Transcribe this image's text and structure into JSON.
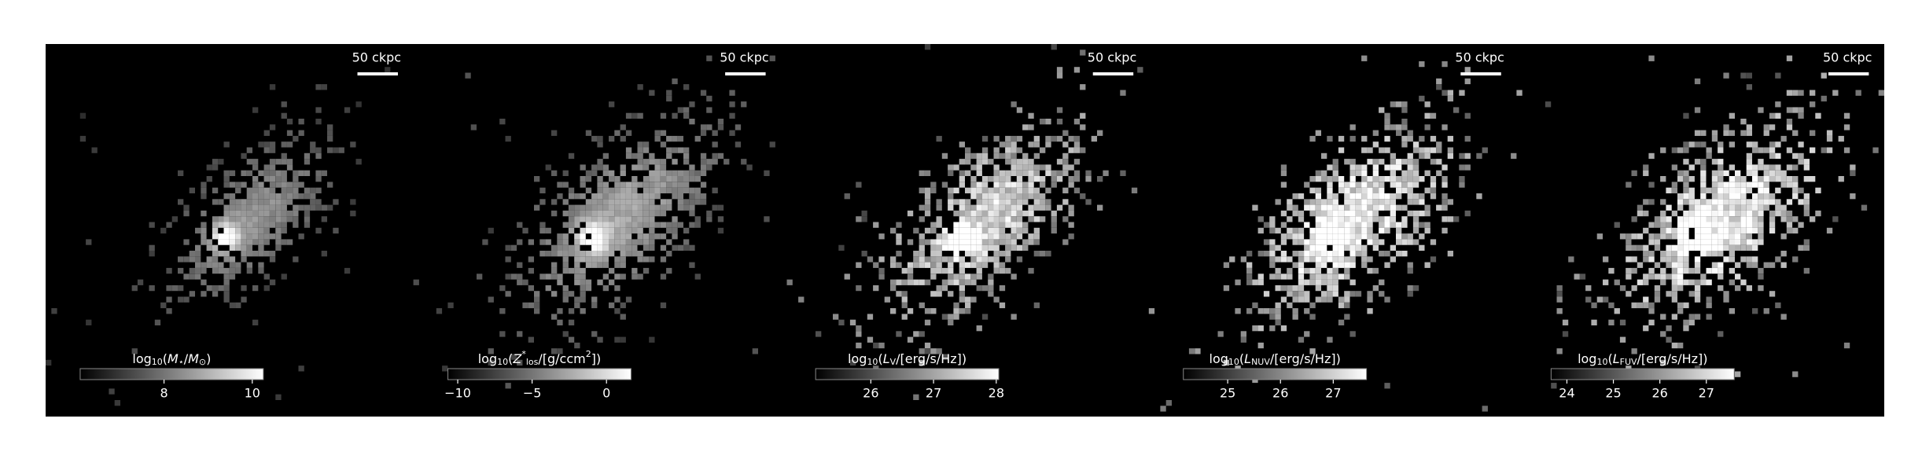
{
  "panels": [
    {
      "scale_label": "50 ckpc",
      "colorbar": {
        "label": [
          {
            "text": "log"
          },
          {
            "text": "10",
            "sub": true
          },
          {
            "text": "("
          },
          {
            "text": "M",
            "italic": true
          },
          {
            "text": "⋆",
            "sub": true
          },
          {
            "text": "/"
          },
          {
            "text": "M",
            "italic": true
          },
          {
            "text": "⊙",
            "sub": true
          },
          {
            "text": ")"
          }
        ],
        "lim": [
          6.1,
          10.25
        ],
        "ticks": [
          8,
          10
        ]
      }
    },
    {
      "scale_label": "50 ckpc",
      "colorbar": {
        "label": [
          {
            "text": "log"
          },
          {
            "text": "10",
            "sub": true
          },
          {
            "text": "("
          },
          {
            "text": "Z",
            "italic": true
          },
          {
            "text": "*",
            "sup": true
          },
          {
            "text": "los",
            "sub": true
          },
          {
            "text": "/[g/ccm"
          },
          {
            "text": "2",
            "sup": true
          },
          {
            "text": "])"
          }
        ],
        "lim": [
          -10.66,
          1.65
        ],
        "ticks": [
          {
            "value": -10,
            "label": "−10"
          },
          {
            "value": -5,
            "label": "−5"
          },
          0
        ]
      }
    },
    {
      "scale_label": "50 ckpc",
      "colorbar": {
        "label": [
          {
            "text": "log"
          },
          {
            "text": "10",
            "sub": true
          },
          {
            "text": "("
          },
          {
            "text": "L",
            "italic": true
          },
          {
            "text": "V",
            "sub": true
          },
          {
            "text": "/[erg/s/Hz])"
          }
        ],
        "lim": [
          25.12,
          28.04
        ],
        "ticks": [
          26,
          27,
          28
        ]
      }
    },
    {
      "scale_label": "50 ckpc",
      "colorbar": {
        "label": [
          {
            "text": "log"
          },
          {
            "text": "10",
            "sub": true
          },
          {
            "text": "("
          },
          {
            "text": "L",
            "italic": true
          },
          {
            "text": "NUV",
            "sub": true
          },
          {
            "text": "/[erg/s/Hz])"
          }
        ],
        "lim": [
          24.16,
          27.63
        ],
        "ticks": [
          25,
          26,
          27
        ]
      }
    },
    {
      "scale_label": "50 ckpc",
      "colorbar": {
        "label": [
          {
            "text": "log"
          },
          {
            "text": "10",
            "sub": true
          },
          {
            "text": "("
          },
          {
            "text": "L",
            "italic": true
          },
          {
            "text": "FUV",
            "sub": true
          },
          {
            "text": "/[erg/s/Hz])"
          }
        ],
        "lim": [
          23.66,
          27.6
        ],
        "ticks": [
          24,
          25,
          26,
          27
        ]
      }
    }
  ]
}
